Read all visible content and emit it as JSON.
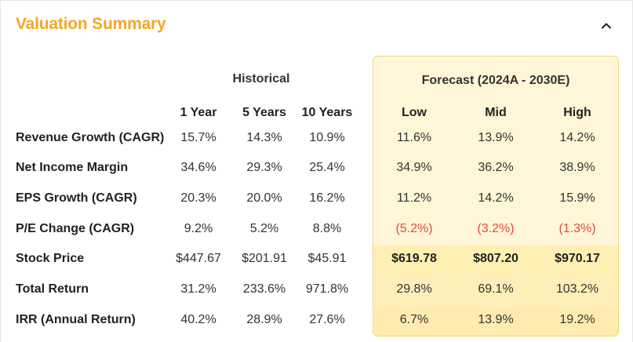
{
  "header": {
    "title": "Valuation Summary",
    "collapse_icon": "chevron-up-icon"
  },
  "groups": {
    "historical": "Historical",
    "forecast": "Forecast (2024A - 2030E)"
  },
  "columns": [
    "1 Year",
    "5 Years",
    "10 Years",
    "Low",
    "Mid",
    "High"
  ],
  "rows": [
    {
      "label": "Revenue Growth (CAGR)",
      "values": [
        "15.7%",
        "14.3%",
        "10.9%",
        "11.6%",
        "13.9%",
        "14.2%"
      ]
    },
    {
      "label": "Net Income Margin",
      "values": [
        "34.6%",
        "29.3%",
        "25.4%",
        "34.9%",
        "36.2%",
        "38.9%"
      ]
    },
    {
      "label": "EPS Growth (CAGR)",
      "values": [
        "20.3%",
        "20.0%",
        "16.2%",
        "11.2%",
        "14.2%",
        "15.9%"
      ]
    },
    {
      "label": "P/E Change (CAGR)",
      "values": [
        "9.2%",
        "5.2%",
        "8.8%",
        "(5.2%)",
        "(3.2%)",
        "(1.3%)"
      ]
    },
    {
      "label": "Stock Price",
      "values": [
        "$447.67",
        "$201.91",
        "$45.91",
        "$619.78",
        "$807.20",
        "$970.17"
      ]
    },
    {
      "label": "Total Return",
      "values": [
        "31.2%",
        "233.6%",
        "971.8%",
        "29.8%",
        "69.1%",
        "103.2%"
      ]
    },
    {
      "label": "IRR (Annual Return)",
      "values": [
        "40.2%",
        "28.9%",
        "27.6%",
        "6.7%",
        "13.9%",
        "19.2%"
      ]
    }
  ],
  "colors": {
    "accent": "#f5a623",
    "negative": "#e04a3f",
    "forecast_bg": "#fff6d7"
  }
}
